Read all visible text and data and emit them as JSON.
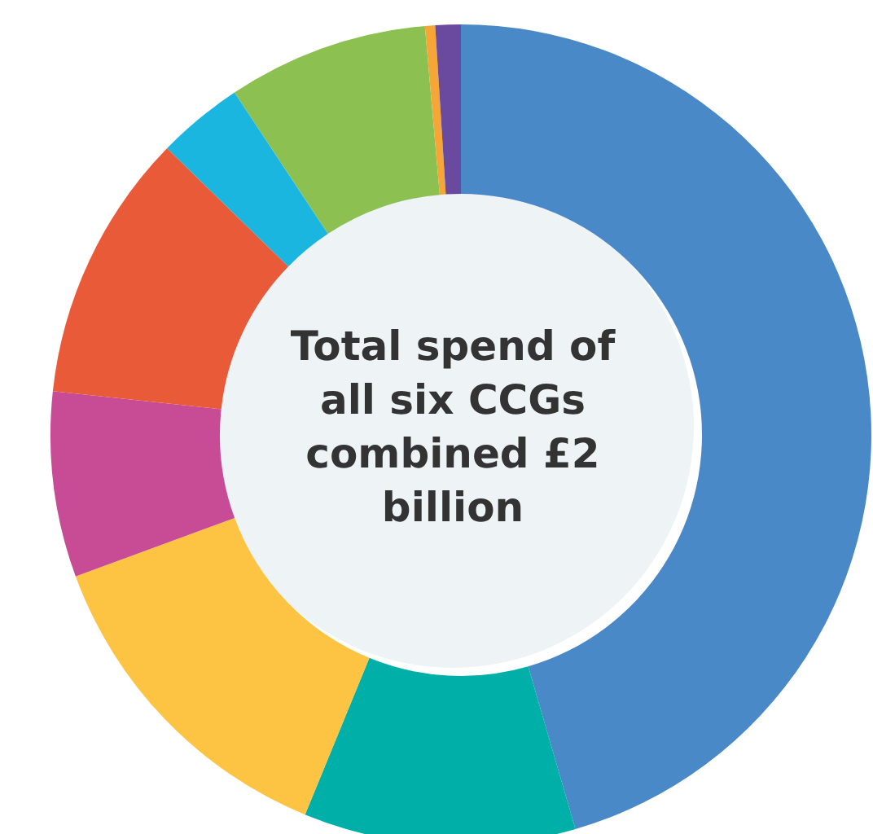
{
  "chart_data": {
    "type": "donut",
    "title": "Total spend of all six CCGs combined £2 billion",
    "categories": [
      null,
      null,
      null,
      null,
      null,
      null,
      null,
      null,
      null
    ],
    "values": [
      45.5,
      10.7,
      13.2,
      7.3,
      10.6,
      3.4,
      7.9,
      0.4,
      1.0
    ],
    "colors": [
      "#4a89c8",
      "#00b0a8",
      "#fdc444",
      "#c84b96",
      "#e95b38",
      "#1ab6e0",
      "#8cc152",
      "#f6a637",
      "#6a4a9e"
    ],
    "legend": false
  }
}
